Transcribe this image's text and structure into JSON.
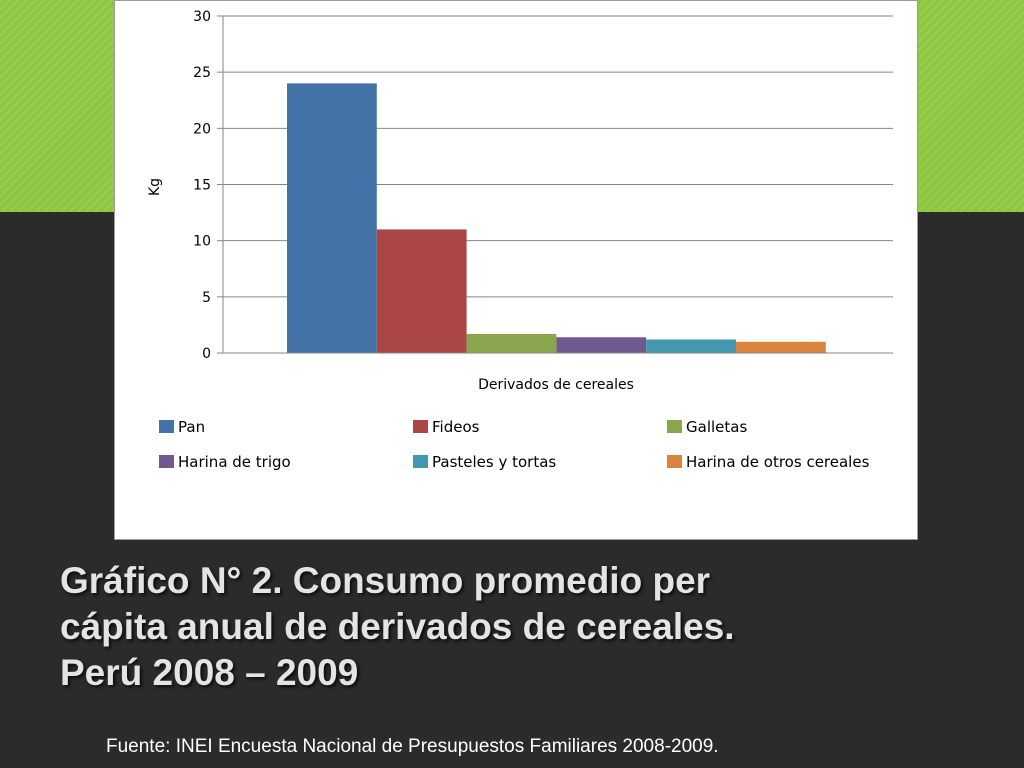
{
  "chart_data": {
    "type": "bar",
    "categories": [
      "Pan",
      "Fideos",
      "Galletas",
      "Harina de trigo",
      "Pasteles y tortas",
      "Harina de otros cereales"
    ],
    "values": [
      24,
      11,
      1.7,
      1.4,
      1.2,
      1.0
    ],
    "colors": [
      "#4572a7",
      "#aa4643",
      "#89a54e",
      "#71588f",
      "#4198af",
      "#db843d"
    ],
    "xlabel": "Derivados de cereales",
    "ylabel": "Kg",
    "ylim": [
      0,
      30
    ],
    "yticks": [
      0,
      5,
      10,
      15,
      20,
      25,
      30
    ],
    "grid": true,
    "legend_position": "bottom"
  },
  "slide": {
    "title_lines": [
      "Gráfico N° 2. Consumo promedio per",
      "cápita anual de derivados de cereales.",
      "Perú 2008 – 2009"
    ],
    "source": "Fuente: INEI Encuesta Nacional de Presupuestos Familiares 2008-2009."
  }
}
